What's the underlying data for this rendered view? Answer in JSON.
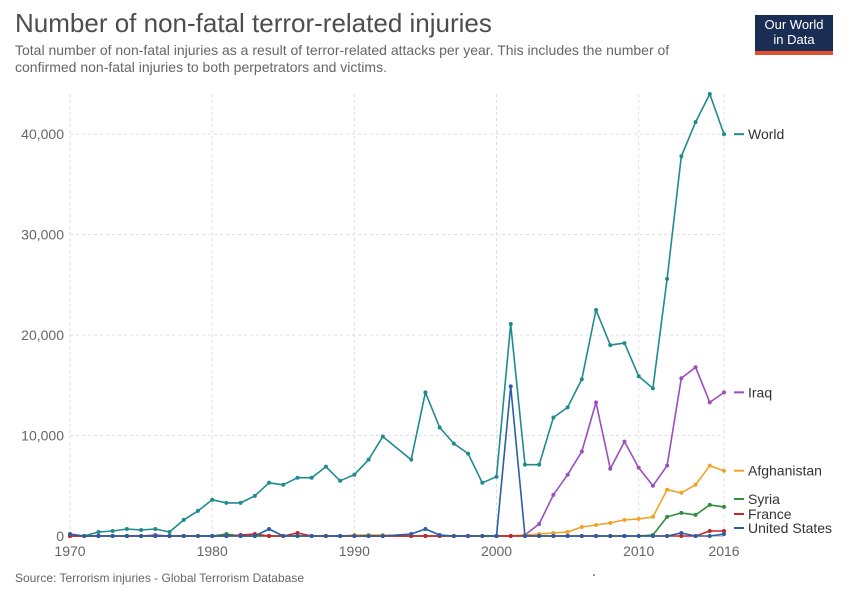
{
  "header": {
    "title": "Number of non-fatal terror-related injuries",
    "subtitle": "Total number of non-fatal injuries as a result of terror-related attacks per year. This includes the number of confirmed non-fatal injuries to both perpetrators and victims."
  },
  "logo": {
    "line1": "Our World",
    "line2": "in Data"
  },
  "footer": {
    "source": "Source: Terrorism injuries - Global Terrorism Database"
  },
  "chart_data": {
    "type": "line",
    "title": "Number of non-fatal terror-related injuries",
    "xlabel": "",
    "ylabel": "",
    "xlim": [
      1970,
      2016
    ],
    "ylim": [
      0,
      44000
    ],
    "x_ticks": [
      1970,
      1980,
      1990,
      2000,
      2010,
      2016
    ],
    "y_ticks": [
      0,
      10000,
      20000,
      30000,
      40000
    ],
    "y_tick_labels": [
      "0",
      "10,000",
      "20,000",
      "30,000",
      "40,000"
    ],
    "grid": true,
    "legend": "right, inline at line ends",
    "x": [
      1970,
      1971,
      1972,
      1973,
      1974,
      1975,
      1976,
      1977,
      1978,
      1979,
      1980,
      1981,
      1982,
      1983,
      1984,
      1985,
      1986,
      1987,
      1988,
      1989,
      1990,
      1991,
      1992,
      1994,
      1995,
      1996,
      1997,
      1998,
      1999,
      2000,
      2001,
      2002,
      2003,
      2004,
      2005,
      2006,
      2007,
      2008,
      2009,
      2010,
      2011,
      2012,
      2013,
      2014,
      2015,
      2016
    ],
    "series": [
      {
        "name": "World",
        "color": "#1f8a8f",
        "values": [
          100,
          0,
          400,
          500,
          700,
          600,
          700,
          400,
          1600,
          2500,
          3600,
          3300,
          3300,
          4000,
          5300,
          5100,
          5800,
          5800,
          6900,
          5500,
          6100,
          7600,
          9900,
          7600,
          14300,
          10800,
          9200,
          8200,
          5300,
          5900,
          21100,
          7100,
          7100,
          11800,
          12800,
          15600,
          22500,
          19000,
          19200,
          15900,
          14700,
          25600,
          37800,
          41200,
          44000,
          40000
        ]
      },
      {
        "name": "Iraq",
        "color": "#9b4fbd",
        "values": [
          0,
          0,
          0,
          0,
          0,
          0,
          100,
          0,
          0,
          0,
          0,
          0,
          0,
          0,
          0,
          0,
          0,
          0,
          0,
          0,
          0,
          0,
          0,
          0,
          0,
          0,
          0,
          0,
          0,
          0,
          0,
          100,
          1200,
          4100,
          6100,
          8400,
          13300,
          6700,
          9400,
          6800,
          5000,
          7000,
          15700,
          16800,
          13300,
          14300
        ]
      },
      {
        "name": "Afghanistan",
        "color": "#f0a326",
        "values": [
          0,
          0,
          0,
          0,
          0,
          0,
          0,
          0,
          0,
          0,
          0,
          0,
          0,
          0,
          0,
          0,
          0,
          0,
          0,
          0,
          100,
          100,
          100,
          0,
          0,
          0,
          0,
          0,
          0,
          0,
          0,
          100,
          200,
          300,
          400,
          900,
          1100,
          1300,
          1600,
          1700,
          1900,
          4600,
          4300,
          5100,
          7000,
          6500
        ]
      },
      {
        "name": "Syria",
        "color": "#2f8d3c",
        "values": [
          0,
          0,
          0,
          0,
          0,
          0,
          0,
          0,
          0,
          0,
          0,
          200,
          0,
          0,
          0,
          0,
          0,
          0,
          0,
          0,
          0,
          0,
          0,
          0,
          0,
          0,
          0,
          0,
          0,
          0,
          0,
          0,
          0,
          0,
          0,
          0,
          0,
          0,
          0,
          0,
          100,
          1900,
          2300,
          2100,
          3100,
          2900
        ]
      },
      {
        "name": "France",
        "color": "#c7242b",
        "values": [
          0,
          0,
          0,
          0,
          0,
          0,
          0,
          0,
          0,
          0,
          0,
          0,
          100,
          200,
          0,
          0,
          300,
          0,
          0,
          0,
          0,
          0,
          0,
          0,
          0,
          0,
          0,
          0,
          0,
          0,
          0,
          0,
          0,
          0,
          0,
          0,
          0,
          0,
          0,
          0,
          0,
          0,
          0,
          0,
          500,
          500
        ]
      },
      {
        "name": "United States",
        "color": "#2a5ea6",
        "values": [
          200,
          0,
          0,
          0,
          0,
          0,
          0,
          0,
          0,
          0,
          0,
          0,
          0,
          0,
          700,
          0,
          0,
          0,
          0,
          0,
          0,
          0,
          0,
          200,
          700,
          100,
          0,
          0,
          0,
          0,
          14900,
          0,
          0,
          0,
          0,
          0,
          0,
          0,
          0,
          0,
          0,
          0,
          300,
          0,
          0,
          200
        ]
      }
    ]
  }
}
